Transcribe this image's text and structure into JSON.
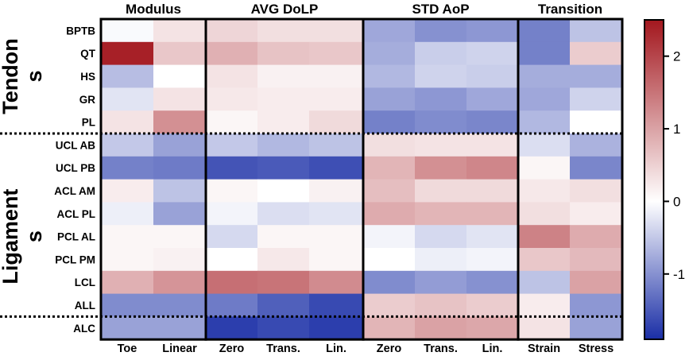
{
  "chart_data": {
    "type": "heatmap",
    "title": "",
    "column_groups": [
      {
        "label": "Modulus",
        "columns": [
          "Toe",
          "Linear"
        ]
      },
      {
        "label": "AVG DoLP",
        "columns": [
          "Zero",
          "Trans.",
          "Lin."
        ]
      },
      {
        "label": "STD AoP",
        "columns": [
          "Zero",
          "Trans.",
          "Lin."
        ]
      },
      {
        "label": "Transition",
        "columns": [
          "Strain",
          "Stress"
        ]
      }
    ],
    "row_groups": [
      {
        "label": "Tendon\ns",
        "rows": [
          "BPTB",
          "QT",
          "HS",
          "GR",
          "PL"
        ]
      },
      {
        "label": "Ligament\ns",
        "rows": [
          "UCL AB",
          "UCL PB",
          "ACL AM",
          "ACL PL",
          "PCL AL",
          "PCL PM",
          "LCL",
          "ALL",
          "ALC"
        ]
      }
    ],
    "values": [
      [
        -0.05,
        0.3,
        0.45,
        0.35,
        0.35,
        -0.8,
        -1.0,
        -0.95,
        -1.15,
        -0.55
      ],
      [
        2.4,
        0.6,
        0.85,
        0.65,
        0.6,
        -0.75,
        -0.45,
        -0.4,
        -1.15,
        0.55
      ],
      [
        -0.6,
        0.0,
        0.3,
        0.15,
        0.15,
        -0.65,
        -0.4,
        -0.45,
        -0.75,
        -0.75
      ],
      [
        -0.25,
        0.3,
        0.25,
        0.2,
        0.2,
        -0.85,
        -0.95,
        -0.8,
        -0.8,
        -0.4
      ],
      [
        0.3,
        1.2,
        0.1,
        0.2,
        0.4,
        -1.15,
        -1.05,
        -1.1,
        -0.65,
        0.0
      ],
      [
        -0.5,
        -0.85,
        -0.5,
        -0.65,
        -0.55,
        0.35,
        0.3,
        0.3,
        -0.3,
        -0.7
      ],
      [
        -1.15,
        -1.2,
        -1.55,
        -1.5,
        -1.6,
        0.8,
        1.2,
        1.3,
        0.1,
        -1.1
      ],
      [
        0.2,
        -0.55,
        0.1,
        0.0,
        0.15,
        0.7,
        0.4,
        0.4,
        0.25,
        0.35
      ],
      [
        -0.15,
        -0.85,
        -0.1,
        -0.3,
        -0.25,
        0.9,
        0.8,
        0.8,
        0.35,
        0.2
      ],
      [
        0.1,
        0.1,
        -0.35,
        0.1,
        0.1,
        -0.1,
        -0.35,
        -0.25,
        1.35,
        0.9
      ],
      [
        0.1,
        0.15,
        0.0,
        0.25,
        0.1,
        0.0,
        -0.15,
        -0.1,
        0.6,
        0.75
      ],
      [
        0.85,
        1.15,
        1.55,
        1.5,
        1.25,
        -1.05,
        -0.9,
        -1.0,
        -0.55,
        1.0
      ],
      [
        -1.05,
        -1.05,
        -1.2,
        -1.45,
        -1.65,
        0.55,
        0.65,
        0.55,
        0.2,
        -0.95
      ],
      [
        -0.85,
        -0.85,
        -1.75,
        -1.65,
        -1.75,
        0.8,
        1.0,
        0.95,
        0.3,
        -0.85
      ]
    ],
    "colorbar": {
      "ticks": [
        -1,
        0,
        1,
        2
      ],
      "tick_labels": [
        "-1",
        "0",
        "1",
        "2"
      ],
      "range": [
        -1.9,
        2.5
      ],
      "low_color": "#1a2ea6",
      "mid_color": "#ffffff",
      "high_color": "#a3171e"
    },
    "group_separators": "dotted horizontal lines between tendon and ligament groups and before the last row"
  }
}
